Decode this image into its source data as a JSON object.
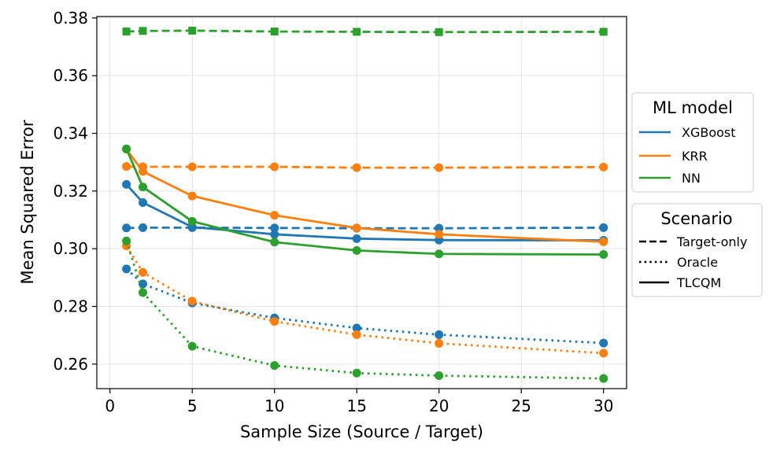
{
  "chart_data": {
    "type": "line",
    "title": "",
    "xlabel": "Sample Size (Source / Target)",
    "ylabel": "Mean Squared Error",
    "xlim": [
      -0.8,
      31.4
    ],
    "ylim": [
      0.2515,
      0.3805
    ],
    "xticks": [
      0,
      5,
      10,
      15,
      20,
      25,
      30
    ],
    "yticks": [
      0.26,
      0.28,
      0.3,
      0.32,
      0.34,
      0.36,
      0.38
    ],
    "ytick_labels": [
      "0.26",
      "0.28",
      "0.30",
      "0.32",
      "0.34",
      "0.36",
      "0.38"
    ],
    "grid": true,
    "x": [
      1,
      2,
      5,
      10,
      15,
      20,
      30
    ],
    "series": [
      {
        "name": "XGBoost Target-only",
        "model": "XGBoost",
        "scenario": "Target-only",
        "values": [
          0.3072,
          0.3073,
          0.3073,
          0.3072,
          0.3071,
          0.3071,
          0.3073
        ]
      },
      {
        "name": "KRR Target-only",
        "model": "KRR",
        "scenario": "Target-only",
        "values": [
          0.3285,
          0.3284,
          0.3284,
          0.3284,
          0.3281,
          0.3281,
          0.3283
        ]
      },
      {
        "name": "NN Target-only",
        "model": "NN",
        "scenario": "Target-only",
        "values": [
          0.3753,
          0.3755,
          0.3756,
          0.3753,
          0.3752,
          0.3751,
          0.3752
        ]
      },
      {
        "name": "XGBoost Oracle",
        "model": "XGBoost",
        "scenario": "Oracle",
        "values": [
          0.293,
          0.2878,
          0.2812,
          0.276,
          0.2725,
          0.2702,
          0.2673
        ]
      },
      {
        "name": "KRR Oracle",
        "model": "KRR",
        "scenario": "Oracle",
        "values": [
          0.301,
          0.2918,
          0.2818,
          0.2748,
          0.2702,
          0.2672,
          0.2638
        ]
      },
      {
        "name": "NN Oracle",
        "model": "NN",
        "scenario": "Oracle",
        "values": [
          0.3027,
          0.2848,
          0.2662,
          0.2595,
          0.2569,
          0.256,
          0.255
        ]
      },
      {
        "name": "XGBoost TLCQM",
        "model": "XGBoost",
        "scenario": "TLCQM",
        "values": [
          0.3223,
          0.316,
          0.3075,
          0.305,
          0.3035,
          0.303,
          0.3029
        ]
      },
      {
        "name": "KRR TLCQM",
        "model": "KRR",
        "scenario": "TLCQM",
        "values": [
          0.3345,
          0.3268,
          0.3183,
          0.3116,
          0.3072,
          0.305,
          0.3024
        ]
      },
      {
        "name": "NN TLCQM",
        "model": "NN",
        "scenario": "TLCQM",
        "values": [
          0.3346,
          0.3214,
          0.3095,
          0.3023,
          0.2994,
          0.2982,
          0.298
        ]
      }
    ],
    "colors": {
      "XGBoost": "#1f77b4",
      "KRR": "#ff7f0e",
      "NN": "#2ca02c"
    },
    "legend_model": {
      "title": "ML model",
      "entries": [
        "XGBoost",
        "KRR",
        "NN"
      ]
    },
    "legend_scenario": {
      "title": "Scenario",
      "entries": [
        "Target-only",
        "Oracle",
        "TLCQM"
      ]
    },
    "legend_placement": "outside-right"
  }
}
